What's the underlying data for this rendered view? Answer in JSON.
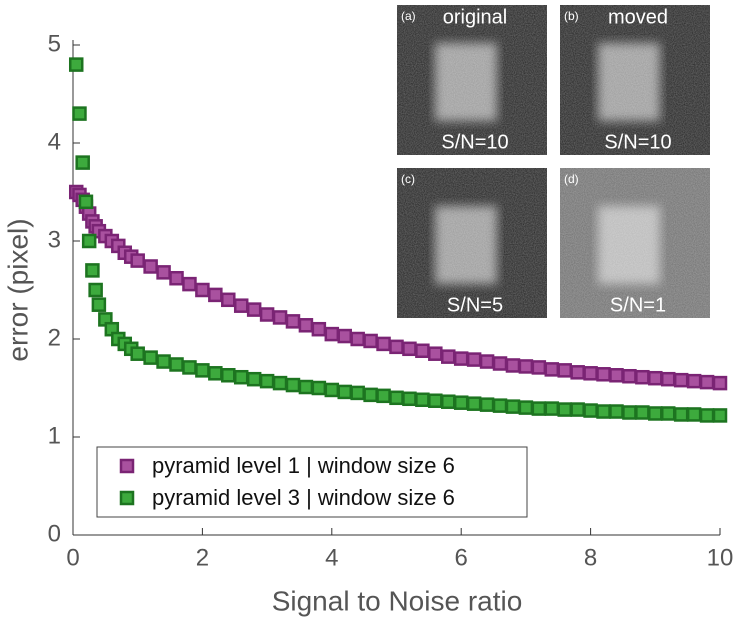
{
  "chart_data": {
    "type": "scatter",
    "xlabel": "Signal to Noise ratio",
    "ylabel": "error (pixel)",
    "xlim": [
      0,
      10
    ],
    "ylim": [
      0,
      5
    ],
    "xticks": [
      0,
      2,
      4,
      6,
      8,
      10
    ],
    "yticks": [
      0,
      1,
      2,
      3,
      4,
      5
    ],
    "legend": "lower left",
    "x": [
      0.05,
      0.1,
      0.15,
      0.2,
      0.25,
      0.3,
      0.35,
      0.4,
      0.5,
      0.6,
      0.7,
      0.8,
      0.9,
      1.0,
      1.2,
      1.4,
      1.6,
      1.8,
      2.0,
      2.2,
      2.4,
      2.6,
      2.8,
      3.0,
      3.2,
      3.4,
      3.6,
      3.8,
      4.0,
      4.2,
      4.4,
      4.6,
      4.8,
      5.0,
      5.2,
      5.4,
      5.6,
      5.8,
      6.0,
      6.2,
      6.4,
      6.6,
      6.8,
      7.0,
      7.2,
      7.4,
      7.6,
      7.8,
      8.0,
      8.2,
      8.4,
      8.6,
      8.8,
      9.0,
      9.2,
      9.4,
      9.6,
      9.8,
      10.0
    ],
    "series": [
      {
        "name": "pyramid level 1 | window size 6",
        "color": "#a9519f",
        "edge": "#7a2474",
        "values": [
          3.5,
          3.47,
          3.42,
          3.35,
          3.28,
          3.2,
          3.15,
          3.1,
          3.05,
          3.0,
          2.95,
          2.88,
          2.84,
          2.8,
          2.74,
          2.68,
          2.62,
          2.56,
          2.5,
          2.45,
          2.4,
          2.34,
          2.3,
          2.25,
          2.22,
          2.18,
          2.14,
          2.1,
          2.05,
          2.03,
          2.0,
          1.98,
          1.95,
          1.92,
          1.9,
          1.88,
          1.85,
          1.82,
          1.8,
          1.79,
          1.77,
          1.75,
          1.73,
          1.72,
          1.71,
          1.69,
          1.68,
          1.66,
          1.65,
          1.64,
          1.63,
          1.62,
          1.61,
          1.6,
          1.59,
          1.58,
          1.57,
          1.56,
          1.55
        ]
      },
      {
        "name": "pyramid level 3 | window size 6",
        "color": "#3daa3d",
        "edge": "#1d7420",
        "values": [
          4.8,
          4.3,
          3.8,
          3.4,
          3.0,
          2.7,
          2.5,
          2.35,
          2.2,
          2.1,
          2.0,
          1.95,
          1.9,
          1.85,
          1.81,
          1.77,
          1.74,
          1.71,
          1.68,
          1.65,
          1.63,
          1.61,
          1.59,
          1.57,
          1.55,
          1.53,
          1.51,
          1.5,
          1.48,
          1.46,
          1.45,
          1.43,
          1.42,
          1.4,
          1.39,
          1.38,
          1.37,
          1.36,
          1.35,
          1.34,
          1.33,
          1.32,
          1.31,
          1.3,
          1.29,
          1.29,
          1.28,
          1.28,
          1.27,
          1.26,
          1.26,
          1.25,
          1.25,
          1.24,
          1.24,
          1.23,
          1.23,
          1.22,
          1.22
        ]
      }
    ],
    "insets": [
      {
        "tag": "(a)",
        "title": "original",
        "caption": "S/N=10"
      },
      {
        "tag": "(b)",
        "title": "moved",
        "caption": "S/N=10"
      },
      {
        "tag": "(c)",
        "caption": "S/N=5"
      },
      {
        "tag": "(d)",
        "caption": "S/N=1"
      }
    ]
  }
}
